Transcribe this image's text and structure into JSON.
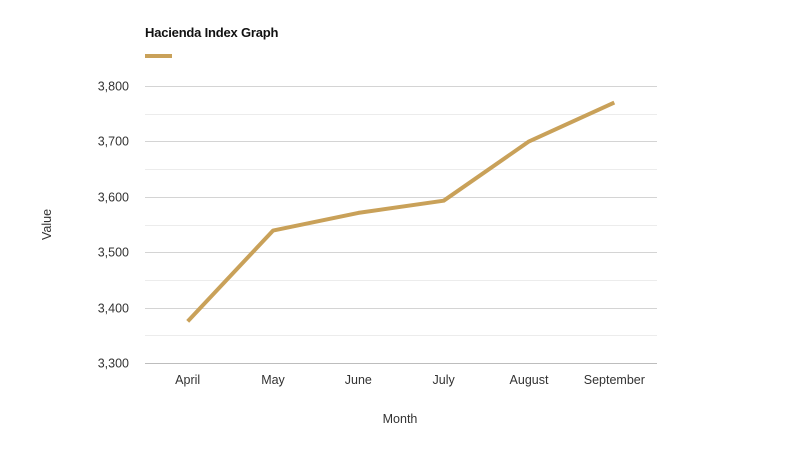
{
  "chart_data": {
    "type": "line",
    "title": "Hacienda Index Graph",
    "categories": [
      "April",
      "May",
      "June",
      "July",
      "August",
      "September"
    ],
    "series": [
      {
        "values": [
          3375,
          3539,
          3571,
          3593,
          3700,
          3770
        ]
      }
    ],
    "xlabel": "Month",
    "ylabel": "Value",
    "ylim": [
      3300,
      3800
    ],
    "y_ticks": [
      3300,
      3400,
      3500,
      3600,
      3700,
      3800
    ],
    "y_tick_labels": [
      "3,300",
      "3,400",
      "3,500",
      "3,600",
      "3,700",
      "3,800"
    ],
    "grid": true,
    "legend_position": "top-left",
    "colors": {
      "series": "#c9a159",
      "grid": "#d4d4d4",
      "minor_grid": "#ececec"
    }
  }
}
